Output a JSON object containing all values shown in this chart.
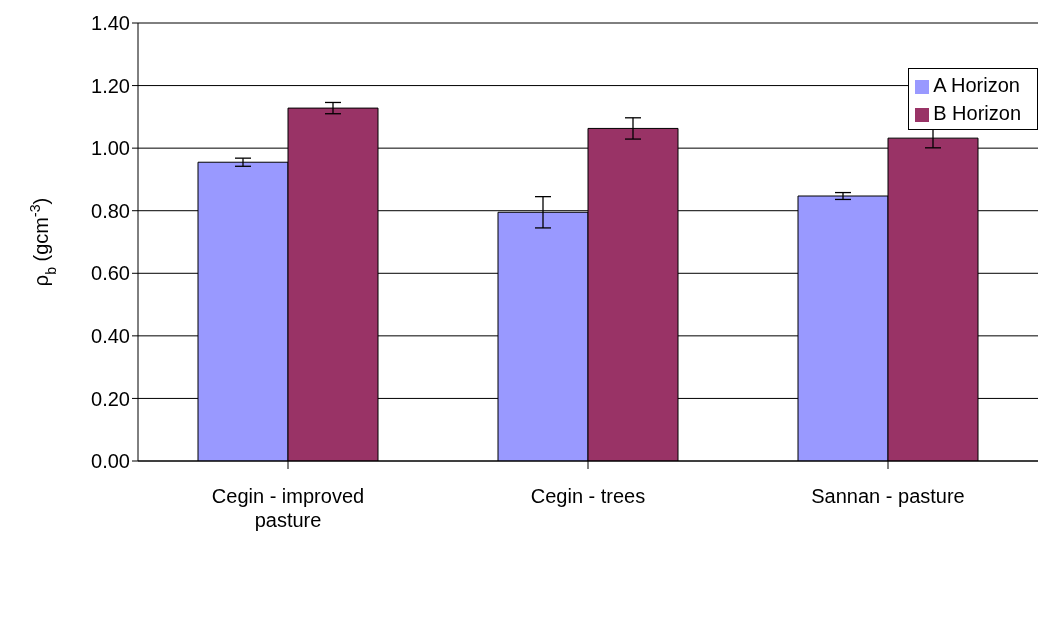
{
  "chart_data": {
    "type": "bar",
    "ylabel": "ρ$_{b}$ (gcm$^{-3}$)",
    "categories": [
      "Cegin - improved pasture",
      "Cegin - trees",
      "Sannan - pasture"
    ],
    "series": [
      {
        "name": "A Horizon",
        "color": "#9999ff",
        "values": [
          0.955,
          0.795,
          0.847
        ],
        "errors": [
          0.013,
          0.05,
          0.011
        ]
      },
      {
        "name": "B Horizon",
        "color": "#993366",
        "values": [
          1.128,
          1.063,
          1.032
        ],
        "errors": [
          0.018,
          0.034,
          0.031
        ]
      }
    ],
    "ylim": [
      0,
      1.4
    ],
    "yticks": [
      {
        "value": 0,
        "label": "0.00"
      },
      {
        "value": 0.2,
        "label": "0.20"
      },
      {
        "value": 0.4,
        "label": "0.40"
      },
      {
        "value": 0.6,
        "label": "0.60"
      },
      {
        "value": 0.8,
        "label": "0.80"
      },
      {
        "value": 1,
        "label": "1.00"
      },
      {
        "value": 1.2,
        "label": "1.20"
      },
      {
        "value": 1.4,
        "label": "1.40"
      }
    ],
    "grid": "y",
    "legend": "top right"
  }
}
